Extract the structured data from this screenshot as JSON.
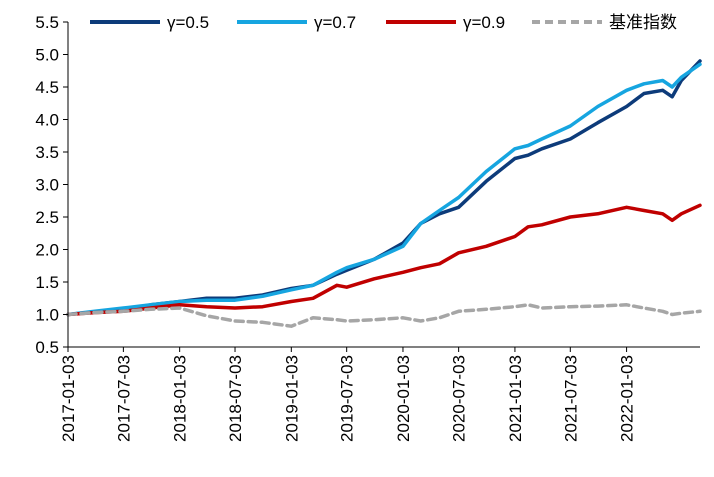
{
  "chart_data": {
    "type": "line",
    "title": "",
    "xlabel": "",
    "ylabel": "",
    "ylim": [
      0.5,
      5.5
    ],
    "y_ticks": [
      "0.5",
      "1.0",
      "1.5",
      "2.0",
      "2.5",
      "3.0",
      "3.5",
      "4.0",
      "4.5",
      "5.0",
      "5.5"
    ],
    "x_ticks": [
      "2017-01-03",
      "2017-07-03",
      "2018-01-03",
      "2018-07-03",
      "2019-01-03",
      "2019-07-03",
      "2020-01-03",
      "2020-07-03",
      "2021-01-03",
      "2021-07-03",
      "2022-01-03"
    ],
    "x_range": [
      "2017-01-03",
      "2022-08-31"
    ],
    "grid": false,
    "legend_position": "top",
    "series": [
      {
        "name": "γ=0.5",
        "color": "#0d3b7a",
        "style": "solid",
        "x": [
          "2017-01-03",
          "2017-04-01",
          "2017-07-03",
          "2017-10-01",
          "2018-01-03",
          "2018-04-01",
          "2018-07-03",
          "2018-10-01",
          "2019-01-03",
          "2019-03-15",
          "2019-06-01",
          "2019-07-03",
          "2019-10-01",
          "2020-01-03",
          "2020-03-01",
          "2020-05-01",
          "2020-07-03",
          "2020-10-01",
          "2021-01-03",
          "2021-02-15",
          "2021-04-01",
          "2021-07-03",
          "2021-10-01",
          "2022-01-03",
          "2022-03-01",
          "2022-05-01",
          "2022-06-01",
          "2022-07-01",
          "2022-08-31"
        ],
        "values": [
          1.0,
          1.04,
          1.08,
          1.15,
          1.2,
          1.25,
          1.25,
          1.3,
          1.4,
          1.45,
          1.62,
          1.68,
          1.85,
          2.1,
          2.4,
          2.55,
          2.65,
          3.05,
          3.4,
          3.45,
          3.55,
          3.7,
          3.95,
          4.2,
          4.4,
          4.45,
          4.35,
          4.6,
          4.9
        ]
      },
      {
        "name": "γ=0.7",
        "color": "#16a5e0",
        "style": "solid",
        "x": [
          "2017-01-03",
          "2017-04-01",
          "2017-07-03",
          "2017-10-01",
          "2018-01-03",
          "2018-04-01",
          "2018-07-03",
          "2018-10-01",
          "2019-01-03",
          "2019-03-15",
          "2019-06-01",
          "2019-07-03",
          "2019-10-01",
          "2020-01-03",
          "2020-03-01",
          "2020-05-01",
          "2020-07-03",
          "2020-10-01",
          "2021-01-03",
          "2021-02-15",
          "2021-04-01",
          "2021-07-03",
          "2021-10-01",
          "2022-01-03",
          "2022-03-01",
          "2022-05-01",
          "2022-06-01",
          "2022-07-01",
          "2022-08-31"
        ],
        "values": [
          1.0,
          1.05,
          1.1,
          1.15,
          1.2,
          1.22,
          1.22,
          1.28,
          1.38,
          1.45,
          1.65,
          1.72,
          1.85,
          2.05,
          2.4,
          2.6,
          2.8,
          3.2,
          3.55,
          3.6,
          3.7,
          3.9,
          4.2,
          4.45,
          4.55,
          4.6,
          4.5,
          4.65,
          4.85
        ]
      },
      {
        "name": "γ=0.9",
        "color": "#c00000",
        "style": "solid",
        "x": [
          "2017-01-03",
          "2017-04-01",
          "2017-07-03",
          "2017-10-01",
          "2018-01-03",
          "2018-04-01",
          "2018-07-03",
          "2018-10-01",
          "2019-01-03",
          "2019-03-15",
          "2019-06-01",
          "2019-07-03",
          "2019-10-01",
          "2020-01-03",
          "2020-03-01",
          "2020-05-01",
          "2020-07-03",
          "2020-10-01",
          "2021-01-03",
          "2021-02-15",
          "2021-04-01",
          "2021-07-03",
          "2021-10-01",
          "2022-01-03",
          "2022-03-01",
          "2022-05-01",
          "2022-06-01",
          "2022-07-01",
          "2022-08-31"
        ],
        "values": [
          1.0,
          1.03,
          1.05,
          1.1,
          1.15,
          1.12,
          1.1,
          1.12,
          1.2,
          1.25,
          1.45,
          1.42,
          1.55,
          1.65,
          1.72,
          1.78,
          1.95,
          2.05,
          2.2,
          2.35,
          2.38,
          2.5,
          2.55,
          2.65,
          2.6,
          2.55,
          2.45,
          2.55,
          2.68
        ]
      },
      {
        "name": "基准指数",
        "color": "#a6a6a6",
        "style": "dashed",
        "x": [
          "2017-01-03",
          "2017-04-01",
          "2017-07-03",
          "2017-10-01",
          "2018-01-03",
          "2018-04-01",
          "2018-07-03",
          "2018-10-01",
          "2019-01-03",
          "2019-03-15",
          "2019-06-01",
          "2019-07-03",
          "2019-10-01",
          "2020-01-03",
          "2020-03-01",
          "2020-05-01",
          "2020-07-03",
          "2020-10-01",
          "2021-01-03",
          "2021-02-15",
          "2021-04-01",
          "2021-07-03",
          "2021-10-01",
          "2022-01-03",
          "2022-03-01",
          "2022-05-01",
          "2022-06-01",
          "2022-07-01",
          "2022-08-31"
        ],
        "values": [
          1.0,
          1.03,
          1.05,
          1.08,
          1.1,
          0.98,
          0.9,
          0.88,
          0.82,
          0.95,
          0.92,
          0.9,
          0.92,
          0.95,
          0.9,
          0.95,
          1.05,
          1.08,
          1.12,
          1.15,
          1.1,
          1.12,
          1.13,
          1.15,
          1.1,
          1.05,
          1.0,
          1.02,
          1.05
        ]
      }
    ]
  }
}
